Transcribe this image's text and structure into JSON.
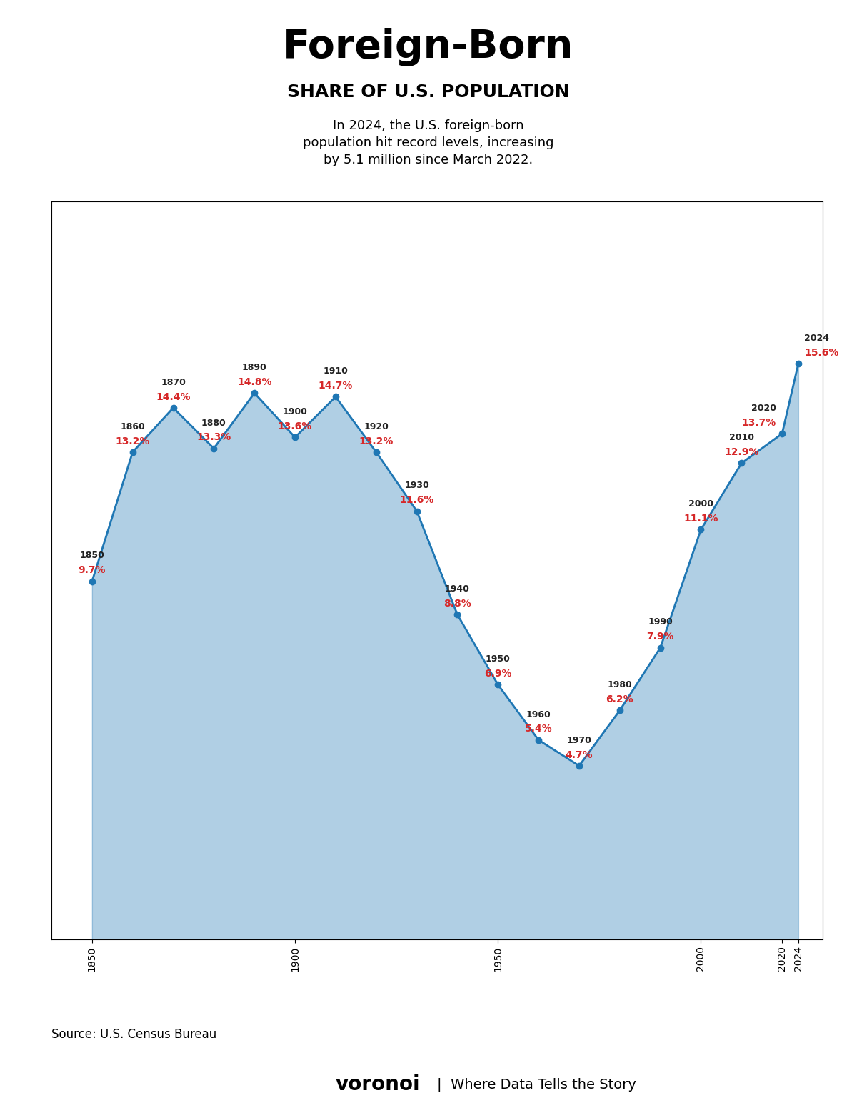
{
  "chart_data": {
    "type": "area",
    "title": "Foreign-Born",
    "subtitle": "SHARE OF U.S. POPULATION",
    "x": [
      1850,
      1860,
      1870,
      1880,
      1890,
      1900,
      1910,
      1920,
      1930,
      1940,
      1950,
      1960,
      1970,
      1980,
      1990,
      2000,
      2010,
      2020,
      2024
    ],
    "values": [
      9.7,
      13.2,
      14.4,
      13.3,
      14.8,
      13.6,
      14.7,
      13.2,
      11.6,
      8.8,
      6.9,
      5.4,
      4.7,
      6.2,
      7.9,
      11.1,
      12.9,
      13.7,
      15.6
    ],
    "value_labels": [
      "9.7%",
      "13.2%",
      "14.4%",
      "13.3%",
      "14.8%",
      "13.6%",
      "14.7%",
      "13.2%",
      "11.6%",
      "8.8%",
      "6.9%",
      "5.4%",
      "4.7%",
      "6.2%",
      "7.9%",
      "11.1%",
      "12.9%",
      "13.7%",
      "15.6%"
    ],
    "data_labels": true,
    "marker": "o",
    "xlim": [
      1840,
      2030
    ],
    "ylim": [
      0,
      20
    ],
    "xticks": [
      1850,
      1900,
      1950,
      2000,
      2020,
      2024
    ],
    "tick_labels": "x",
    "grid": false,
    "annotations": [
      "In 2024, the U.S. foreign-born\npopulation hit record levels, increasing\nby 5.1 million since March 2022.",
      "Source: U.S. Census Bureau",
      "voronoi",
      "|  Where Data Tells the Story"
    ]
  }
}
